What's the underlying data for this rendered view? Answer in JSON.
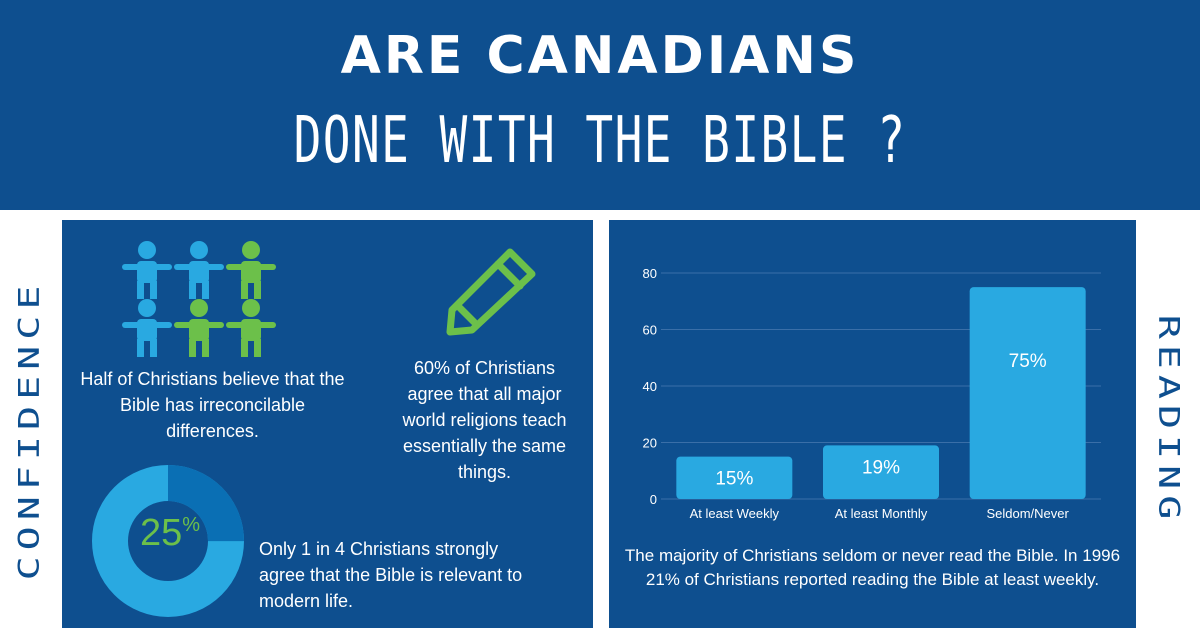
{
  "header": {
    "title_line1": "ARE CANADIANS",
    "title_line2": "DONE WITH THE BIBLE ?"
  },
  "side_labels": {
    "left": "CONFIDENCE",
    "right": "READING"
  },
  "confidence": {
    "people_text": "Half of Christians believe that the Bible has irreconcilable differences.",
    "pencil_text": "60% of Christians agree that all major world religions teach essentially the same things.",
    "donut_value": "25",
    "donut_unit": "%",
    "donut_fraction": 0.25,
    "donut_text": "Only 1 in 4 Christians strongly agree that the Bible is relevant to modern life."
  },
  "colors": {
    "navy": "#0e4f8f",
    "light_blue": "#29a9e1",
    "green": "#6cc04a",
    "donut_dark": "#0a6fb4"
  },
  "chart_data": {
    "type": "bar",
    "categories": [
      "At least Weekly",
      "At least Monthly",
      "Seldom/Never"
    ],
    "values": [
      15,
      19,
      75
    ],
    "data_labels": [
      "15%",
      "19%",
      "75%"
    ],
    "ylim": [
      0,
      80
    ],
    "yticks": [
      0,
      20,
      40,
      60,
      80
    ],
    "grid": true,
    "caption": "The majority of Christians seldom or never read the Bible. In 1996 21% of Christians reported reading the Bible at least weekly."
  }
}
